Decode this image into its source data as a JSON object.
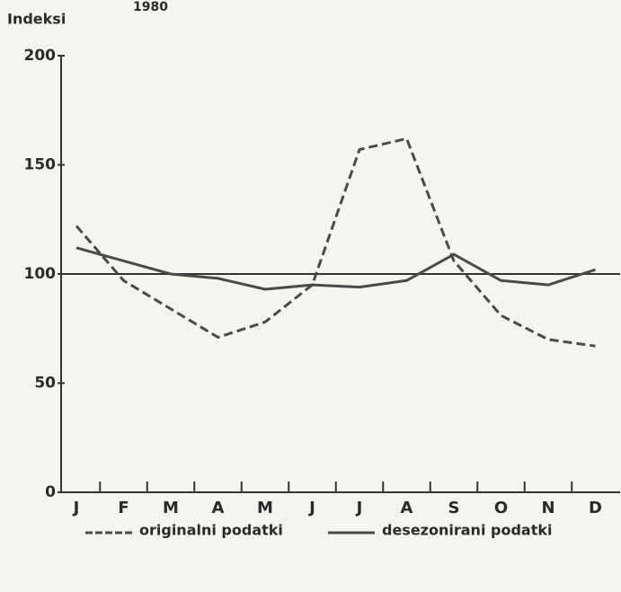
{
  "chart_data": {
    "type": "line",
    "title": "1980",
    "y_label": "Indeksi",
    "categories": [
      "J",
      "F",
      "M",
      "A",
      "M",
      "J",
      "J",
      "A",
      "S",
      "O",
      "N",
      "D"
    ],
    "series": [
      {
        "name": "originalni podatki",
        "color": "#4a4a4a",
        "dashed": true,
        "values": [
          122,
          97,
          84,
          71,
          78,
          95,
          157,
          162,
          106,
          81,
          70,
          67
        ]
      },
      {
        "name": "desezonirani podatki",
        "color": "#4a4a4a",
        "dashed": false,
        "values": [
          112,
          106,
          100,
          98,
          93,
          95,
          94,
          97,
          109,
          97,
          95,
          102
        ]
      }
    ],
    "reference_line": 100,
    "ylim": [
      0,
      200
    ],
    "yticks": [
      0,
      50,
      100,
      150,
      200
    ]
  }
}
